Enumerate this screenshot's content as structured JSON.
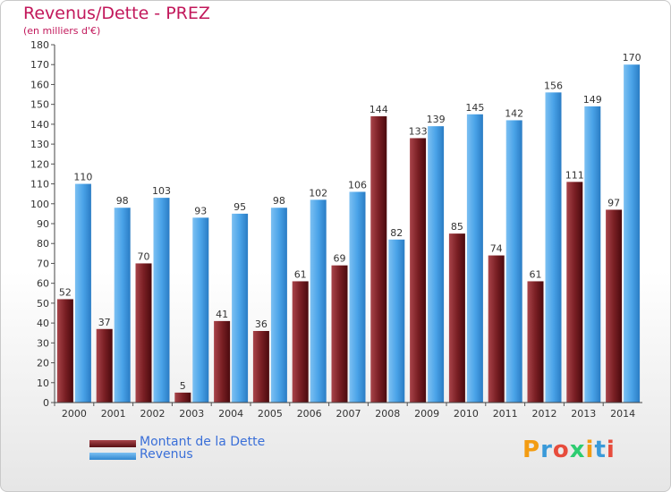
{
  "header": {
    "title": "Revenus/Dette - PREZ",
    "subtitle": "(en milliers d'€)"
  },
  "chart_data": {
    "type": "bar",
    "categories": [
      "2000",
      "2001",
      "2002",
      "2003",
      "2004",
      "2005",
      "2006",
      "2007",
      "2008",
      "2009",
      "2010",
      "2011",
      "2012",
      "2013",
      "2014"
    ],
    "series": [
      {
        "name": "Montant de la Dette",
        "values": [
          52,
          37,
          70,
          5,
          41,
          36,
          61,
          69,
          144,
          133,
          85,
          74,
          61,
          111,
          97
        ],
        "color": "#7a1f24"
      },
      {
        "name": "Revenus",
        "values": [
          110,
          98,
          103,
          93,
          95,
          98,
          102,
          106,
          82,
          139,
          145,
          142,
          156,
          149,
          170
        ],
        "color": "#4aa3e8"
      }
    ],
    "yticks": [
      0,
      10,
      20,
      30,
      40,
      50,
      60,
      70,
      80,
      90,
      100,
      110,
      120,
      130,
      140,
      150,
      160,
      170,
      180
    ],
    "ylim": [
      0,
      180
    ],
    "grid": false,
    "legend": "bottom-left"
  },
  "legend": {
    "dette_label": "Montant de la Dette",
    "revenus_label": "Revenus"
  },
  "logo": {
    "text": "Proxiti"
  }
}
